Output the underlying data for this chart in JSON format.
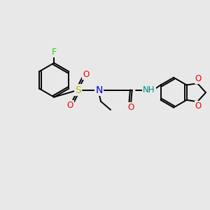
{
  "background_color": "#e8e8e8",
  "bond_color": "#000000",
  "atom_colors": {
    "F": "#33cc00",
    "S": "#bbbb00",
    "N": "#0000ee",
    "O": "#ee0000",
    "H": "#008888",
    "C": "#000000"
  },
  "figsize": [
    3.0,
    3.0
  ],
  "dpi": 100,
  "lw": 1.4,
  "fontsize": 8.5
}
